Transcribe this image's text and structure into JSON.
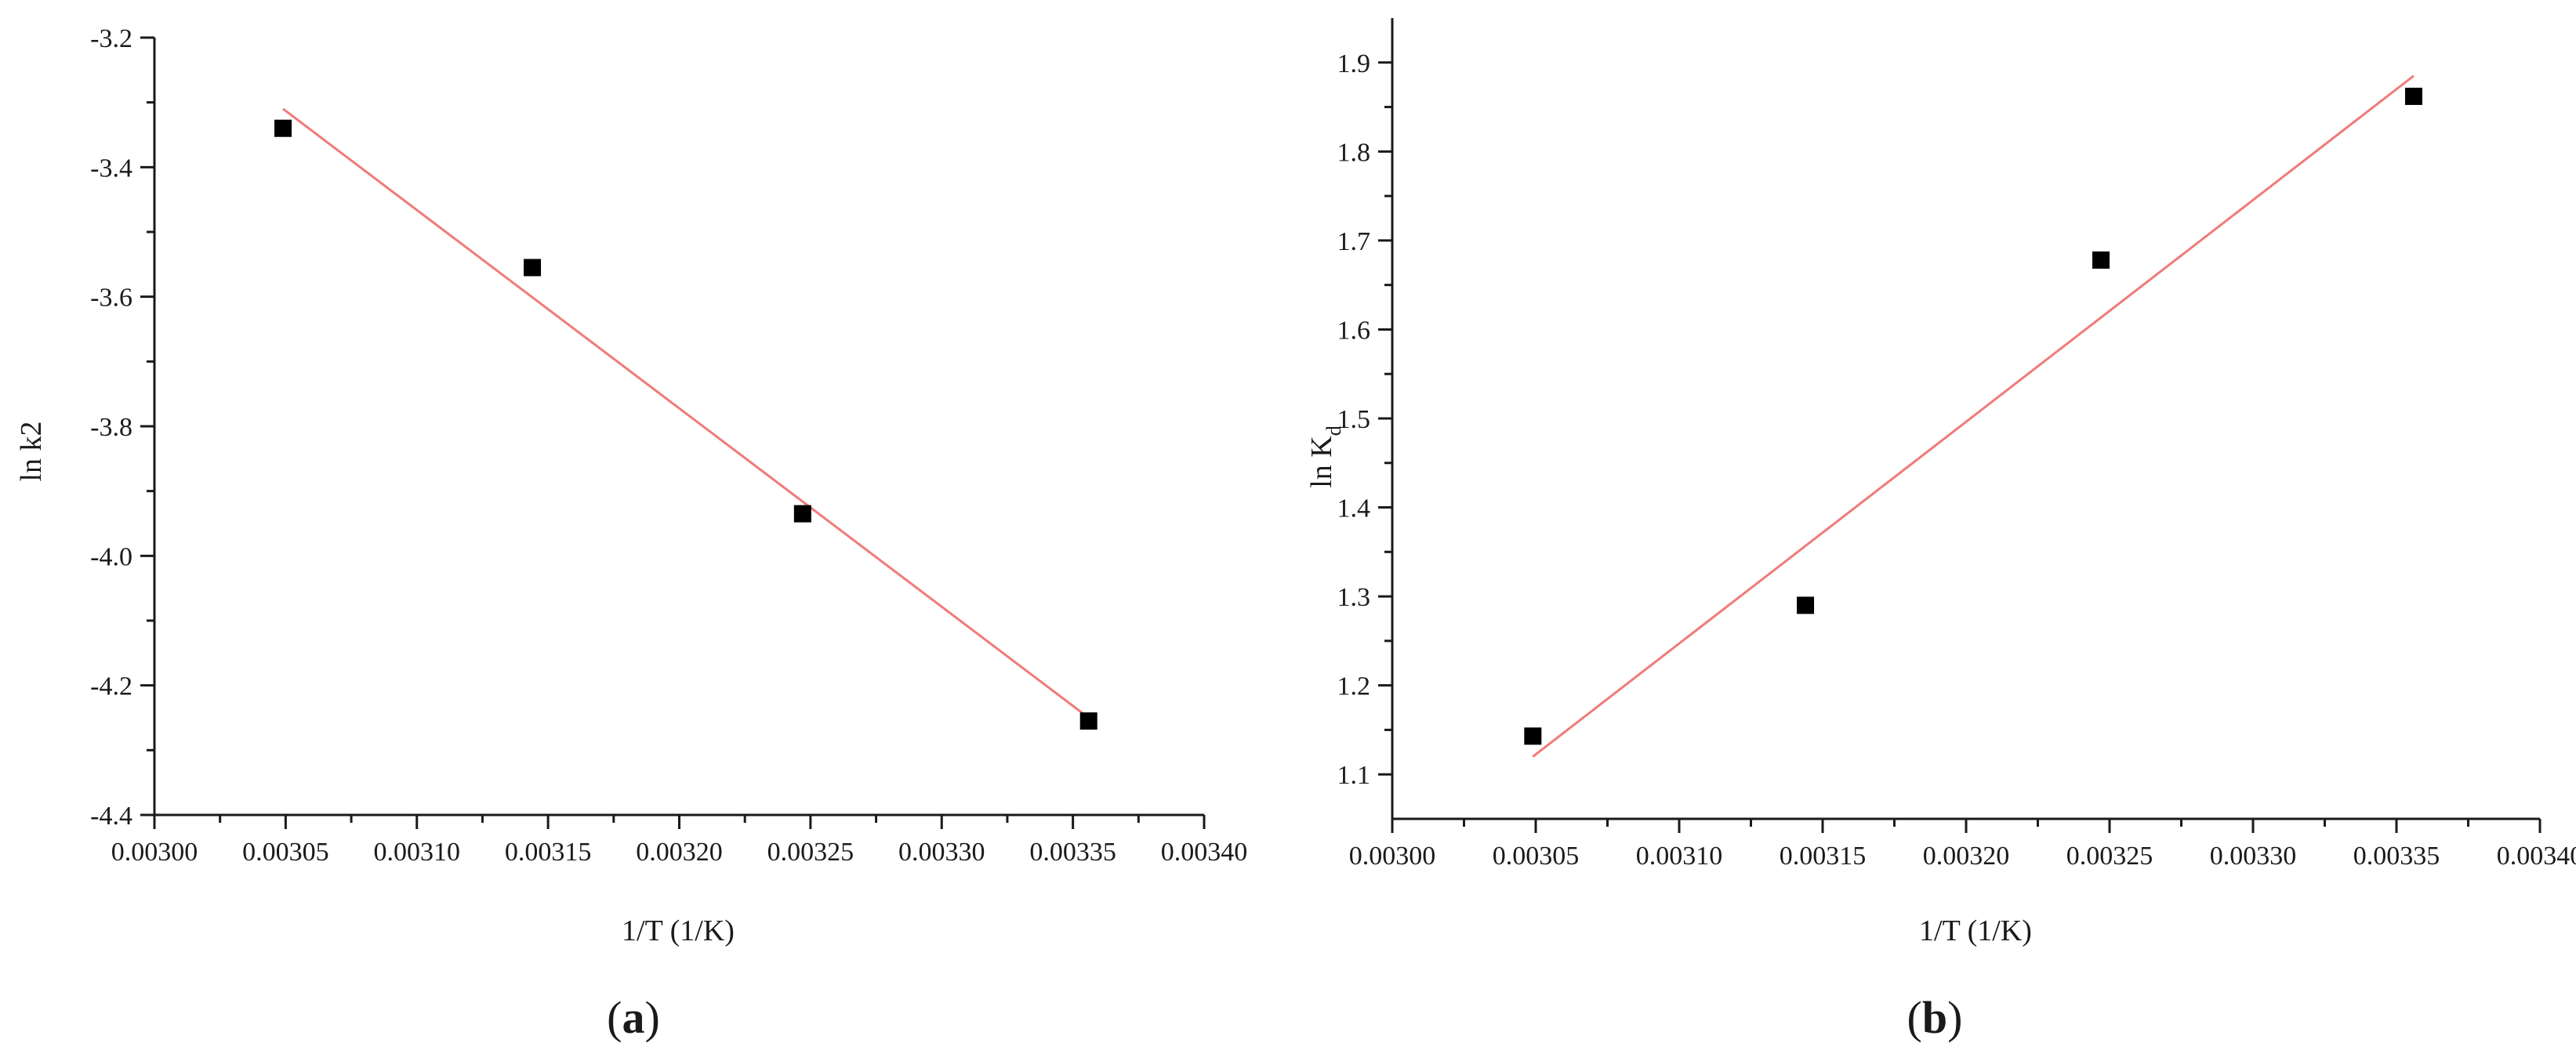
{
  "chart_data": [
    {
      "type": "scatter",
      "panel_label": "a",
      "title": "",
      "xlabel": "1/T (1/K)",
      "ylabel": "ln k2",
      "ylabel_sub": "",
      "xlim": [
        0.003,
        0.0034
      ],
      "ylim": [
        -4.4,
        -3.2
      ],
      "xticks": [
        "0.00300",
        "0.00305",
        "0.00310",
        "0.00315",
        "0.00320",
        "0.00325",
        "0.00330",
        "0.00335",
        "0.00340"
      ],
      "yticks": [
        "-4.4",
        "-4.2",
        "-4.0",
        "-3.8",
        "-3.6",
        "-3.4",
        "-3.2"
      ],
      "grid": false,
      "series": [
        {
          "values": [
            {
              "x": 0.003049,
              "y": -3.34
            },
            {
              "x": 0.003144,
              "y": -3.555
            },
            {
              "x": 0.003247,
              "y": -3.935
            },
            {
              "x": 0.003356,
              "y": -4.255
            }
          ]
        }
      ],
      "fit_line": {
        "x": [
          0.003049,
          0.003356
        ],
        "y": [
          -3.31,
          -4.25
        ]
      },
      "colors": {
        "points": "#000000",
        "fit": "#f07a78",
        "axis": "#1a1a1a"
      }
    },
    {
      "type": "scatter",
      "panel_label": "b",
      "title": "",
      "xlabel": "1/T (1/K)",
      "ylabel": "ln K",
      "ylabel_sub": "d",
      "xlim": [
        0.003,
        0.0034
      ],
      "ylim": [
        1.05,
        1.95
      ],
      "xticks": [
        "0.00300",
        "0.00305",
        "0.00310",
        "0.00315",
        "0.00320",
        "0.00325",
        "0.00330",
        "0.00335",
        "0.00340"
      ],
      "yticks": [
        "1.1",
        "1.2",
        "1.3",
        "1.4",
        "1.5",
        "1.6",
        "1.7",
        "1.8",
        "1.9"
      ],
      "grid": false,
      "series": [
        {
          "values": [
            {
              "x": 0.003049,
              "y": 1.143
            },
            {
              "x": 0.003144,
              "y": 1.29
            },
            {
              "x": 0.003247,
              "y": 1.678
            },
            {
              "x": 0.003356,
              "y": 1.862
            }
          ]
        }
      ],
      "fit_line": {
        "x": [
          0.003049,
          0.003356
        ],
        "y": [
          1.12,
          1.885
        ]
      },
      "colors": {
        "points": "#000000",
        "fit": "#f07a78",
        "axis": "#1a1a1a"
      }
    }
  ]
}
